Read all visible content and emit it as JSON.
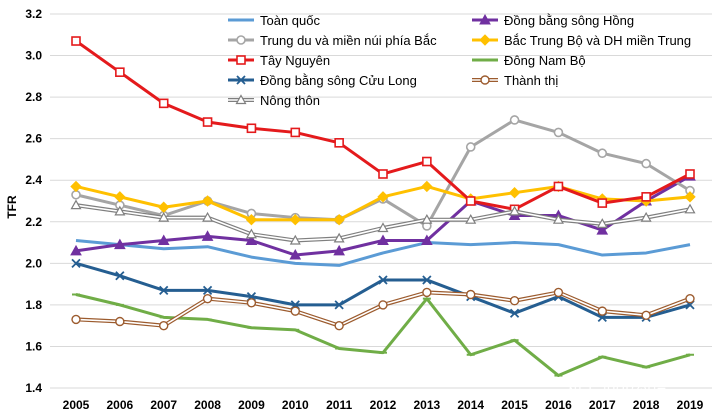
{
  "chart_data": {
    "type": "line",
    "title": "",
    "xlabel": "",
    "ylabel": "TFR",
    "ylim": [
      1.4,
      3.2
    ],
    "yticks": [
      "1.4",
      "1.6",
      "1.8",
      "2.0",
      "2.2",
      "2.4",
      "2.6",
      "2.8",
      "3.0",
      "3.2"
    ],
    "x": [
      "2005",
      "2006",
      "2007",
      "2008",
      "2009",
      "2010",
      "2011",
      "2012",
      "2013",
      "2014",
      "2015",
      "2016",
      "2017",
      "2018",
      "2019"
    ],
    "grid": "horizontal",
    "legend_position": "top",
    "series": [
      {
        "name": "Toàn quốc",
        "color": "#5B9BD5",
        "marker": "none",
        "values": [
          2.11,
          2.09,
          2.07,
          2.08,
          2.03,
          2.0,
          1.99,
          2.05,
          2.1,
          2.09,
          2.1,
          2.09,
          2.04,
          2.05,
          2.09
        ]
      },
      {
        "name": "Đồng bằng sông Hồng",
        "color": "#7030A0",
        "marker": "triangle-filled",
        "values": [
          2.06,
          2.09,
          2.11,
          2.13,
          2.11,
          2.04,
          2.06,
          2.11,
          2.11,
          2.3,
          2.23,
          2.23,
          2.16,
          2.3,
          2.42
        ]
      },
      {
        "name": "Trung du và miền núi phía Bắc",
        "color": "#A5A5A5",
        "marker": "circle-open",
        "values": [
          2.33,
          2.28,
          2.23,
          2.3,
          2.24,
          2.22,
          2.21,
          2.31,
          2.18,
          2.56,
          2.69,
          2.63,
          2.53,
          2.48,
          2.35
        ]
      },
      {
        "name": "Bắc Trung Bộ và DH miền Trung",
        "color": "#FFC000",
        "marker": "diamond-filled",
        "values": [
          2.37,
          2.32,
          2.27,
          2.3,
          2.21,
          2.21,
          2.21,
          2.32,
          2.37,
          2.31,
          2.34,
          2.37,
          2.31,
          2.3,
          2.32
        ]
      },
      {
        "name": "Tây Nguyên",
        "color": "#E41A1C",
        "marker": "square-open",
        "values": [
          3.07,
          2.92,
          2.77,
          2.68,
          2.65,
          2.63,
          2.58,
          2.43,
          2.49,
          2.3,
          2.26,
          2.37,
          2.29,
          2.32,
          2.43
        ]
      },
      {
        "name": "Đông Nam Bộ",
        "color": "#70AD47",
        "marker": "dash",
        "values": [
          1.85,
          1.8,
          1.74,
          1.73,
          1.69,
          1.68,
          1.59,
          1.57,
          1.83,
          1.56,
          1.63,
          1.46,
          1.55,
          1.5,
          1.56
        ]
      },
      {
        "name": "Đồng bằng sông Cửu Long",
        "color": "#255E91",
        "marker": "x",
        "values": [
          2.0,
          1.94,
          1.87,
          1.87,
          1.84,
          1.8,
          1.8,
          1.92,
          1.92,
          1.84,
          1.76,
          1.84,
          1.74,
          1.74,
          1.8
        ]
      },
      {
        "name": "Thành thị",
        "color": "#9C5B2E",
        "marker": "circle-open-double",
        "values": [
          1.73,
          1.72,
          1.7,
          1.83,
          1.81,
          1.77,
          1.7,
          1.8,
          1.86,
          1.85,
          1.82,
          1.86,
          1.77,
          1.75,
          1.83
        ]
      },
      {
        "name": "Nông thôn",
        "color": "#7F7F7F",
        "marker": "triangle-open-double",
        "values": [
          2.28,
          2.25,
          2.22,
          2.22,
          2.14,
          2.11,
          2.12,
          2.17,
          2.21,
          2.21,
          2.25,
          2.21,
          2.19,
          2.22,
          2.26
        ]
      }
    ]
  },
  "watermark": "知乎 @楚药语"
}
